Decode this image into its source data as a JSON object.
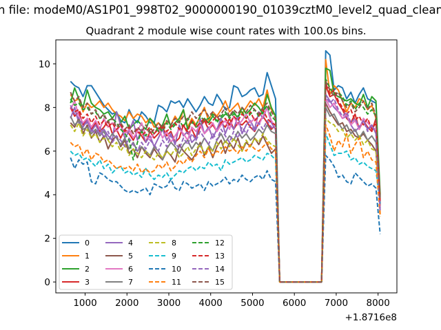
{
  "figure": {
    "suptitle": "n file: modeM0/AS1P01_998T02_9000000190_01039cztM0_level2_quad_clean"
  },
  "chart_data": {
    "type": "line",
    "title": "Quadrant 2 module wise count rates with 100.0s bins.",
    "xlabel": "",
    "ylabel": "",
    "x_offset_text": "+1.8716e8",
    "xlim": [
      300,
      8450
    ],
    "ylim": [
      -0.5,
      11.1
    ],
    "xticks": [
      1000,
      2000,
      3000,
      4000,
      5000,
      6000,
      7000,
      8000
    ],
    "yticks": [
      0,
      2,
      4,
      6,
      8,
      10
    ],
    "grid": false,
    "legend": {
      "placement": "lower-left",
      "columns": 4
    },
    "x_start": 650,
    "x_step": 100,
    "gap": {
      "from": 5650,
      "to": 6650,
      "value": 0
    },
    "x_end": 8050,
    "series": [
      {
        "name": "0",
        "color": "#1f77b4",
        "style": "solid",
        "pre": [
          9.2,
          9.0,
          8.9,
          8.5,
          9.0,
          9.0,
          8.7,
          8.4,
          8.1,
          7.9,
          7.7,
          7.8,
          7.4,
          7.3,
          7.9,
          7.5,
          7.3,
          7.8,
          7.6,
          7.3,
          7.3,
          8.1,
          8.0,
          7.8,
          8.3,
          8.2,
          8.3,
          8.0,
          8.4,
          8.1,
          7.8,
          8.1,
          8.5,
          8.2,
          8.1,
          8.6,
          8.3,
          7.9,
          8.0,
          9.0,
          8.9,
          8.5,
          8.6,
          8.8,
          8.9,
          8.5,
          8.6,
          9.6,
          9.0,
          8.4
        ],
        "post": [
          10.6,
          10.4,
          8.8,
          9.0,
          8.9,
          8.4,
          8.7,
          8.2,
          8.6,
          8.9,
          8.4,
          8.3,
          8.2,
          3.5
        ]
      },
      {
        "name": "1",
        "color": "#ff7f0e",
        "style": "solid",
        "pre": [
          8.6,
          8.3,
          8.4,
          7.8,
          8.2,
          8.0,
          8.1,
          8.3,
          8.0,
          8.2,
          7.9,
          7.7,
          7.6,
          7.4,
          7.8,
          7.5,
          7.7,
          7.6,
          7.3,
          7.5,
          7.1,
          7.3,
          7.0,
          7.4,
          7.2,
          7.6,
          7.3,
          7.9,
          7.1,
          7.5,
          7.2,
          7.6,
          8.0,
          7.4,
          7.8,
          7.6,
          7.9,
          8.3,
          7.8,
          8.0,
          8.2,
          7.7,
          8.0,
          8.3,
          8.1,
          8.4,
          8.0,
          8.8,
          7.9,
          7.6
        ],
        "post": [
          10.2,
          8.6,
          9.0,
          8.8,
          8.3,
          7.8,
          8.2,
          8.0,
          8.4,
          8.3,
          7.9,
          8.1,
          7.5,
          3.1
        ]
      },
      {
        "name": "2",
        "color": "#2ca02c",
        "style": "solid",
        "pre": [
          8.2,
          8.9,
          8.4,
          8.0,
          8.8,
          8.2,
          8.0,
          7.9,
          7.7,
          7.8,
          7.5,
          7.8,
          7.3,
          7.6,
          7.0,
          7.2,
          7.4,
          7.2,
          7.0,
          7.5,
          7.3,
          6.9,
          7.2,
          7.7,
          7.1,
          7.3,
          7.5,
          7.9,
          7.0,
          7.4,
          7.1,
          7.2,
          7.5,
          7.3,
          7.6,
          7.4,
          7.5,
          7.7,
          7.6,
          7.8,
          7.5,
          8.0,
          7.7,
          7.9,
          8.2,
          8.0,
          7.7,
          8.6,
          8.0,
          7.6
        ],
        "post": [
          9.8,
          9.7,
          8.6,
          8.5,
          8.4,
          8.3,
          8.4,
          8.2,
          8.1,
          8.6,
          8.0,
          8.5,
          8.3,
          4.0
        ]
      },
      {
        "name": "3",
        "color": "#d62728",
        "style": "solid",
        "pre": [
          8.0,
          7.6,
          7.8,
          7.2,
          7.5,
          7.0,
          7.3,
          6.9,
          7.1,
          7.4,
          6.8,
          7.0,
          6.6,
          7.0,
          6.8,
          6.5,
          6.9,
          6.7,
          6.4,
          6.9,
          6.6,
          6.8,
          7.1,
          6.7,
          6.9,
          6.4,
          6.6,
          7.2,
          6.8,
          7.0,
          6.6,
          7.1,
          7.4,
          7.0,
          7.2,
          6.9,
          7.3,
          7.1,
          7.5,
          7.0,
          7.3,
          7.2,
          7.4,
          7.1,
          6.9,
          7.3,
          7.6,
          7.3,
          7.0,
          7.2
        ],
        "post": [
          9.0,
          8.5,
          8.6,
          8.2,
          7.9,
          7.5,
          7.3,
          7.7,
          7.0,
          7.4,
          7.1,
          6.9,
          7.5,
          3.6
        ]
      },
      {
        "name": "4",
        "color": "#9467bd",
        "style": "solid",
        "pre": [
          7.5,
          8.0,
          7.3,
          7.1,
          7.4,
          6.9,
          7.2,
          6.8,
          7.0,
          6.7,
          6.5,
          7.8,
          7.2,
          6.6,
          6.9,
          7.4,
          6.5,
          7.0,
          6.4,
          6.7,
          6.2,
          6.6,
          7.0,
          6.5,
          6.8,
          6.3,
          7.2,
          6.7,
          6.9,
          6.4,
          6.6,
          7.5,
          6.8,
          7.1,
          6.6,
          7.0,
          7.5,
          6.8,
          7.3,
          7.0,
          7.6,
          6.8,
          7.2,
          7.4,
          7.0,
          7.8,
          7.5,
          8.0,
          7.3,
          7.0
        ],
        "post": [
          8.6,
          8.3,
          8.0,
          7.8,
          7.5,
          7.6,
          7.2,
          6.9,
          7.1,
          7.4,
          7.0,
          7.2,
          6.8,
          3.4
        ]
      },
      {
        "name": "5",
        "color": "#8c564b",
        "style": "solid",
        "pre": [
          7.3,
          7.1,
          7.5,
          6.8,
          7.2,
          6.6,
          6.9,
          6.4,
          6.7,
          6.1,
          6.5,
          6.7,
          6.2,
          6.5,
          5.9,
          6.1,
          5.7,
          6.2,
          5.9,
          5.7,
          6.1,
          5.8,
          5.6,
          6.0,
          5.8,
          5.5,
          6.3,
          6.0,
          5.8,
          5.6,
          5.9,
          6.4,
          5.8,
          6.2,
          5.7,
          6.2,
          6.5,
          5.9,
          6.4,
          6.1,
          6.6,
          6.0,
          6.4,
          6.2,
          6.6,
          6.3,
          6.7,
          6.3,
          5.9,
          6.1
        ],
        "post": [
          8.2,
          7.8,
          7.5,
          7.2,
          7.3,
          6.9,
          7.0,
          6.7,
          6.6,
          6.8,
          6.5,
          6.3,
          6.0,
          3.5
        ]
      },
      {
        "name": "6",
        "color": "#e377c2",
        "style": "solid",
        "pre": [
          7.9,
          8.3,
          7.6,
          7.3,
          7.5,
          7.1,
          7.4,
          7.0,
          7.5,
          7.1,
          7.3,
          6.9,
          7.2,
          6.8,
          7.0,
          6.6,
          6.9,
          7.3,
          6.7,
          6.5,
          6.8,
          7.1,
          6.6,
          6.9,
          6.4,
          6.7,
          7.0,
          6.8,
          6.5,
          7.1,
          6.9,
          7.2,
          6.8,
          7.0,
          7.3,
          6.9,
          7.2,
          7.4,
          7.0,
          7.6,
          7.2,
          7.4,
          7.7,
          7.3,
          7.5,
          7.2,
          7.6,
          8.0,
          7.4,
          7.1
        ],
        "post": [
          8.4,
          8.0,
          8.2,
          7.8,
          7.5,
          7.7,
          7.2,
          7.4,
          7.0,
          7.5,
          7.3,
          7.1,
          7.0,
          3.3
        ]
      },
      {
        "name": "7",
        "color": "#7f7f7f",
        "style": "solid",
        "pre": [
          7.6,
          7.2,
          7.4,
          7.0,
          7.1,
          6.8,
          7.0,
          6.7,
          6.9,
          6.5,
          6.8,
          6.6,
          6.3,
          6.6,
          6.1,
          6.4,
          6.0,
          6.2,
          6.0,
          5.8,
          6.2,
          6.0,
          5.6,
          6.1,
          6.4,
          6.2,
          5.9,
          6.3,
          6.5,
          6.1,
          6.4,
          6.2,
          6.6,
          6.3,
          6.0,
          6.5,
          6.8,
          6.4,
          6.7,
          6.5,
          6.9,
          6.6,
          6.8,
          6.5,
          6.7,
          7.0,
          6.8,
          7.2,
          6.9,
          6.8
        ],
        "post": [
          8.0,
          7.6,
          7.7,
          7.3,
          7.0,
          7.2,
          6.8,
          7.0,
          6.6,
          6.9,
          6.5,
          6.7,
          6.4,
          3.6
        ]
      },
      {
        "name": "8",
        "color": "#bcbd22",
        "style": "dashed",
        "pre": [
          7.2,
          6.9,
          7.3,
          6.7,
          7.0,
          6.6,
          6.8,
          6.4,
          6.6,
          6.5,
          6.2,
          6.4,
          6.0,
          6.3,
          5.8,
          6.1,
          5.9,
          5.7,
          6.0,
          5.8,
          5.6,
          5.9,
          5.7,
          6.0,
          5.8,
          6.1,
          5.7,
          5.9,
          6.2,
          5.8,
          6.1,
          6.3,
          5.9,
          6.2,
          6.0,
          6.4,
          6.1,
          6.5,
          6.2,
          6.6,
          6.3,
          6.0,
          6.5,
          6.2,
          6.6,
          6.4,
          6.8,
          6.5,
          6.3,
          6.2
        ],
        "post": [
          7.5,
          7.3,
          7.2,
          6.9,
          7.0,
          6.6,
          6.8,
          6.5,
          6.7,
          6.3,
          6.5,
          6.1,
          6.0,
          3.8
        ]
      },
      {
        "name": "9",
        "color": "#17becf",
        "style": "dashed",
        "pre": [
          6.0,
          5.8,
          5.9,
          5.6,
          5.7,
          5.5,
          5.3,
          5.6,
          5.2,
          5.4,
          5.0,
          5.2,
          5.3,
          5.0,
          5.1,
          4.9,
          5.0,
          4.8,
          5.2,
          4.9,
          4.7,
          4.9,
          4.8,
          5.0,
          4.7,
          4.9,
          5.1,
          5.0,
          5.2,
          5.3,
          5.1,
          5.3,
          5.2,
          5.5,
          5.3,
          5.4,
          5.1,
          5.6,
          5.4,
          5.5,
          5.6,
          5.7,
          5.5,
          5.6,
          5.8,
          5.7,
          5.6,
          5.9,
          5.8,
          5.6
        ],
        "post": [
          6.8,
          6.3,
          5.8,
          5.9,
          5.9,
          6.0,
          5.6,
          5.7,
          5.4,
          5.5,
          5.3,
          5.2,
          5.1,
          3.6
        ]
      },
      {
        "name": "10",
        "color": "#1f77b4",
        "style": "dashed",
        "pre": [
          5.7,
          5.2,
          5.6,
          5.4,
          5.5,
          4.6,
          4.5,
          5.0,
          4.9,
          4.7,
          4.6,
          4.6,
          4.4,
          4.2,
          4.1,
          4.2,
          4.1,
          4.2,
          4.3,
          4.0,
          4.5,
          4.4,
          4.3,
          4.4,
          4.7,
          4.3,
          4.2,
          4.6,
          4.5,
          4.3,
          4.4,
          4.5,
          4.2,
          4.6,
          4.4,
          4.5,
          4.6,
          4.8,
          4.5,
          4.7,
          4.6,
          4.9,
          4.7,
          4.6,
          4.8,
          4.9,
          4.7,
          5.1,
          4.7,
          4.6
        ],
        "post": [
          5.8,
          5.6,
          5.3,
          4.8,
          4.9,
          4.6,
          4.5,
          5.0,
          4.8,
          4.6,
          4.4,
          4.5,
          4.3,
          2.2
        ]
      },
      {
        "name": "11",
        "color": "#ff7f0e",
        "style": "dashed",
        "pre": [
          6.4,
          6.2,
          6.3,
          5.8,
          6.1,
          5.6,
          5.9,
          5.8,
          5.5,
          5.6,
          5.4,
          5.2,
          5.3,
          5.2,
          5.3,
          5.1,
          5.4,
          5.0,
          5.2,
          5.0,
          5.1,
          5.4,
          5.2,
          5.5,
          5.1,
          5.3,
          5.6,
          5.4,
          5.7,
          5.5,
          5.8,
          6.0,
          5.7,
          6.1,
          5.8,
          6.0,
          5.9,
          6.2,
          6.0,
          6.1,
          5.9,
          6.2,
          6.0,
          6.3,
          6.1,
          6.0,
          6.2,
          6.4,
          6.1,
          6.0
        ],
        "post": [
          7.2,
          6.7,
          6.0,
          6.5,
          6.2,
          6.8,
          5.9,
          6.3,
          6.6,
          5.7,
          6.0,
          5.6,
          5.5,
          3.0
        ]
      },
      {
        "name": "12",
        "color": "#2ca02c",
        "style": "dashed",
        "pre": [
          8.4,
          8.1,
          8.2,
          7.9,
          8.0,
          7.7,
          7.8,
          7.5,
          7.6,
          7.4,
          7.5,
          7.3,
          7.0,
          6.8,
          6.5,
          5.6,
          6.4,
          6.9,
          6.7,
          7.0,
          6.8,
          7.1,
          6.9,
          7.3,
          7.0,
          7.2,
          7.4,
          7.1,
          7.5,
          7.3,
          7.2,
          7.6,
          7.4,
          7.5,
          7.7,
          7.3,
          7.6,
          7.8,
          7.5,
          7.7,
          7.6,
          7.8,
          7.5,
          7.7,
          7.9,
          7.6,
          7.8,
          8.1,
          7.6,
          7.4
        ],
        "post": [
          9.3,
          8.9,
          8.6,
          8.7,
          8.5,
          8.1,
          8.3,
          7.9,
          8.2,
          8.0,
          7.7,
          7.9,
          7.6,
          3.9
        ]
      },
      {
        "name": "13",
        "color": "#d62728",
        "style": "dashed",
        "pre": [
          8.0,
          7.8,
          7.9,
          7.5,
          7.7,
          7.3,
          7.6,
          7.2,
          7.4,
          7.1,
          7.3,
          7.0,
          7.2,
          6.9,
          7.1,
          6.8,
          7.0,
          6.7,
          6.9,
          7.1,
          6.8,
          7.0,
          7.2,
          6.9,
          7.1,
          7.3,
          7.0,
          7.2,
          6.9,
          7.4,
          7.1,
          7.3,
          7.5,
          7.2,
          7.4,
          7.6,
          7.3,
          7.5,
          7.2,
          7.6,
          7.4,
          7.7,
          7.5,
          7.8,
          7.4,
          7.6,
          7.9,
          7.5,
          7.3,
          7.2
        ],
        "post": [
          9.1,
          8.6,
          8.8,
          8.3,
          8.0,
          7.7,
          7.9,
          7.4,
          7.6,
          7.2,
          7.5,
          7.0,
          7.3,
          3.7
        ]
      },
      {
        "name": "14",
        "color": "#9467bd",
        "style": "dashed",
        "pre": [
          8.1,
          7.7,
          7.5,
          7.2,
          7.3,
          7.0,
          6.8,
          7.1,
          6.6,
          6.9,
          6.4,
          6.7,
          6.5,
          6.2,
          6.6,
          6.3,
          6.0,
          6.4,
          6.1,
          6.5,
          6.3,
          6.0,
          6.5,
          6.2,
          6.7,
          6.4,
          6.1,
          6.6,
          6.3,
          6.8,
          6.5,
          6.9,
          6.6,
          6.3,
          6.8,
          6.5,
          7.0,
          6.7,
          6.4,
          6.9,
          6.6,
          7.1,
          6.8,
          7.2,
          6.9,
          7.3,
          7.0,
          7.4,
          7.1,
          7.0
        ],
        "post": [
          8.5,
          8.2,
          8.4,
          7.9,
          7.6,
          7.8,
          7.3,
          7.5,
          7.1,
          7.4,
          6.9,
          7.2,
          6.8,
          3.2
        ]
      },
      {
        "name": "15",
        "color": "#8c564b",
        "style": "dashed",
        "pre": [
          8.7,
          8.3,
          8.5,
          8.0,
          8.2,
          7.7,
          7.9,
          7.5,
          7.7,
          7.3,
          7.5,
          7.1,
          7.3,
          7.0,
          7.2,
          6.8,
          7.1,
          6.9,
          7.2,
          6.8,
          7.0,
          7.3,
          7.1,
          7.4,
          7.2,
          7.5,
          7.3,
          7.6,
          7.4,
          7.8,
          7.5,
          7.7,
          7.9,
          7.6,
          7.8,
          7.5,
          7.7,
          8.0,
          7.6,
          7.9,
          7.7,
          8.0,
          7.8,
          8.1,
          7.9,
          7.7,
          8.0,
          8.2,
          7.8,
          7.5
        ],
        "post": [
          9.2,
          8.8,
          8.5,
          8.7,
          8.3,
          8.0,
          8.2,
          7.8,
          8.0,
          8.3,
          7.9,
          8.2,
          7.6,
          3.8
        ]
      }
    ]
  }
}
